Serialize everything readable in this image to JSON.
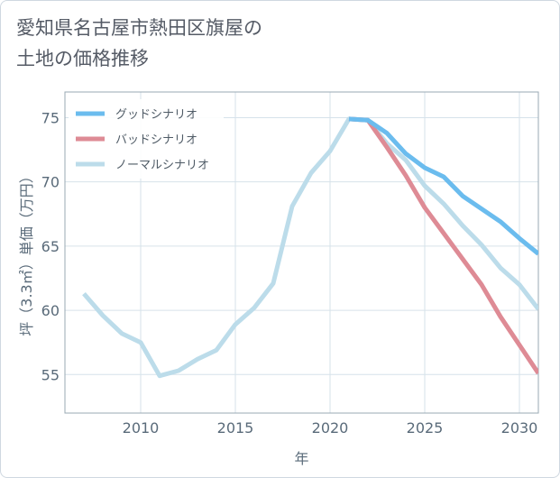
{
  "chart_data": {
    "type": "line",
    "title": "愛知県名古屋市熱田区旗屋の\n土地の価格推移",
    "xlabel": "年",
    "ylabel": "坪（3.3㎡）単価（万円）",
    "xlim": [
      2006,
      2031
    ],
    "ylim": [
      52,
      77
    ],
    "xticks": [
      2010,
      2015,
      2020,
      2025,
      2030
    ],
    "yticks": [
      55,
      60,
      65,
      70,
      75
    ],
    "legend_position": "top-left",
    "series": [
      {
        "name": "グッドシナリオ",
        "color": "#6bbcee",
        "x": [
          2021,
          2022,
          2023,
          2024,
          2025,
          2026,
          2027,
          2028,
          2029,
          2030,
          2031
        ],
        "values": [
          74.9,
          74.8,
          73.8,
          72.2,
          71.1,
          70.4,
          68.9,
          67.9,
          66.9,
          65.6,
          64.4
        ]
      },
      {
        "name": "バッドシナリオ",
        "color": "#de8b95",
        "x": [
          2021,
          2022,
          2023,
          2024,
          2025,
          2026,
          2027,
          2028,
          2029,
          2030,
          2031
        ],
        "values": [
          74.9,
          74.8,
          72.7,
          70.5,
          68.0,
          66.0,
          64.0,
          62.0,
          59.5,
          57.3,
          55.1
        ]
      },
      {
        "name": "ノーマルシナリオ",
        "color": "#bcdcea",
        "x": [
          2007,
          2008,
          2009,
          2010,
          2011,
          2012,
          2013,
          2014,
          2015,
          2016,
          2017,
          2018,
          2019,
          2020,
          2021,
          2022,
          2023,
          2024,
          2025,
          2026,
          2027,
          2028,
          2029,
          2030,
          2031
        ],
        "values": [
          61.3,
          59.6,
          58.2,
          57.5,
          54.9,
          55.3,
          56.2,
          56.9,
          58.9,
          60.2,
          62.1,
          68.1,
          70.7,
          72.4,
          74.9,
          74.8,
          73.0,
          71.7,
          69.7,
          68.3,
          66.6,
          65.1,
          63.3,
          62.0,
          60.1
        ]
      }
    ]
  }
}
